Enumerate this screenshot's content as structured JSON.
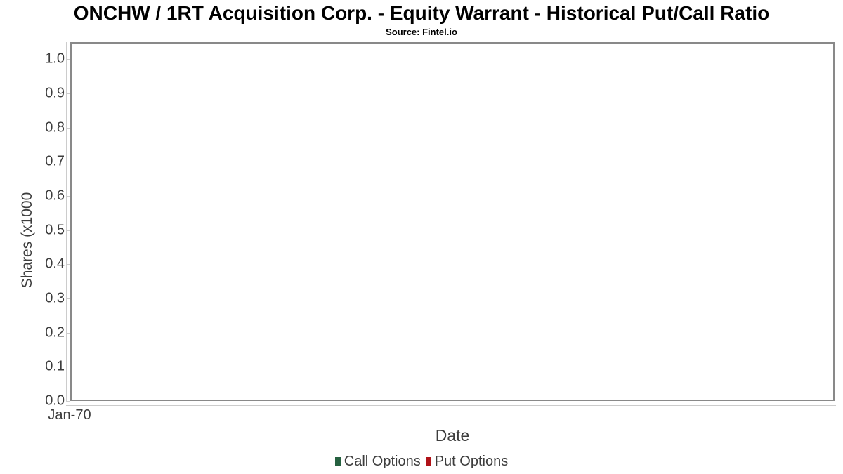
{
  "chart_data": {
    "type": "line",
    "title": "ONCHW / 1RT Acquisition Corp. - Equity Warrant - Historical Put/Call Ratio",
    "subtitle": "Source: Fintel.io",
    "xlabel": "Date",
    "ylabel": "Shares (x1000",
    "x_tick_labels": [
      "Jan-70"
    ],
    "y_tick_labels": [
      "0.0",
      "0.1",
      "0.2",
      "0.3",
      "0.4",
      "0.5",
      "0.6",
      "0.7",
      "0.8",
      "0.9",
      "1.0"
    ],
    "ylim": [
      0.0,
      1.05
    ],
    "grid": true,
    "legend_position": "bottom",
    "series": [
      {
        "name": "Call Options",
        "color": "#266140",
        "values": []
      },
      {
        "name": "Put Options",
        "color": "#b01218",
        "values": []
      }
    ]
  },
  "colors": {
    "plot_border": "#898989",
    "axis_spine": "#cccccc",
    "gridline": "#e8e8e8",
    "tick_text": "#3d3d3d",
    "title_text": "#000000"
  }
}
